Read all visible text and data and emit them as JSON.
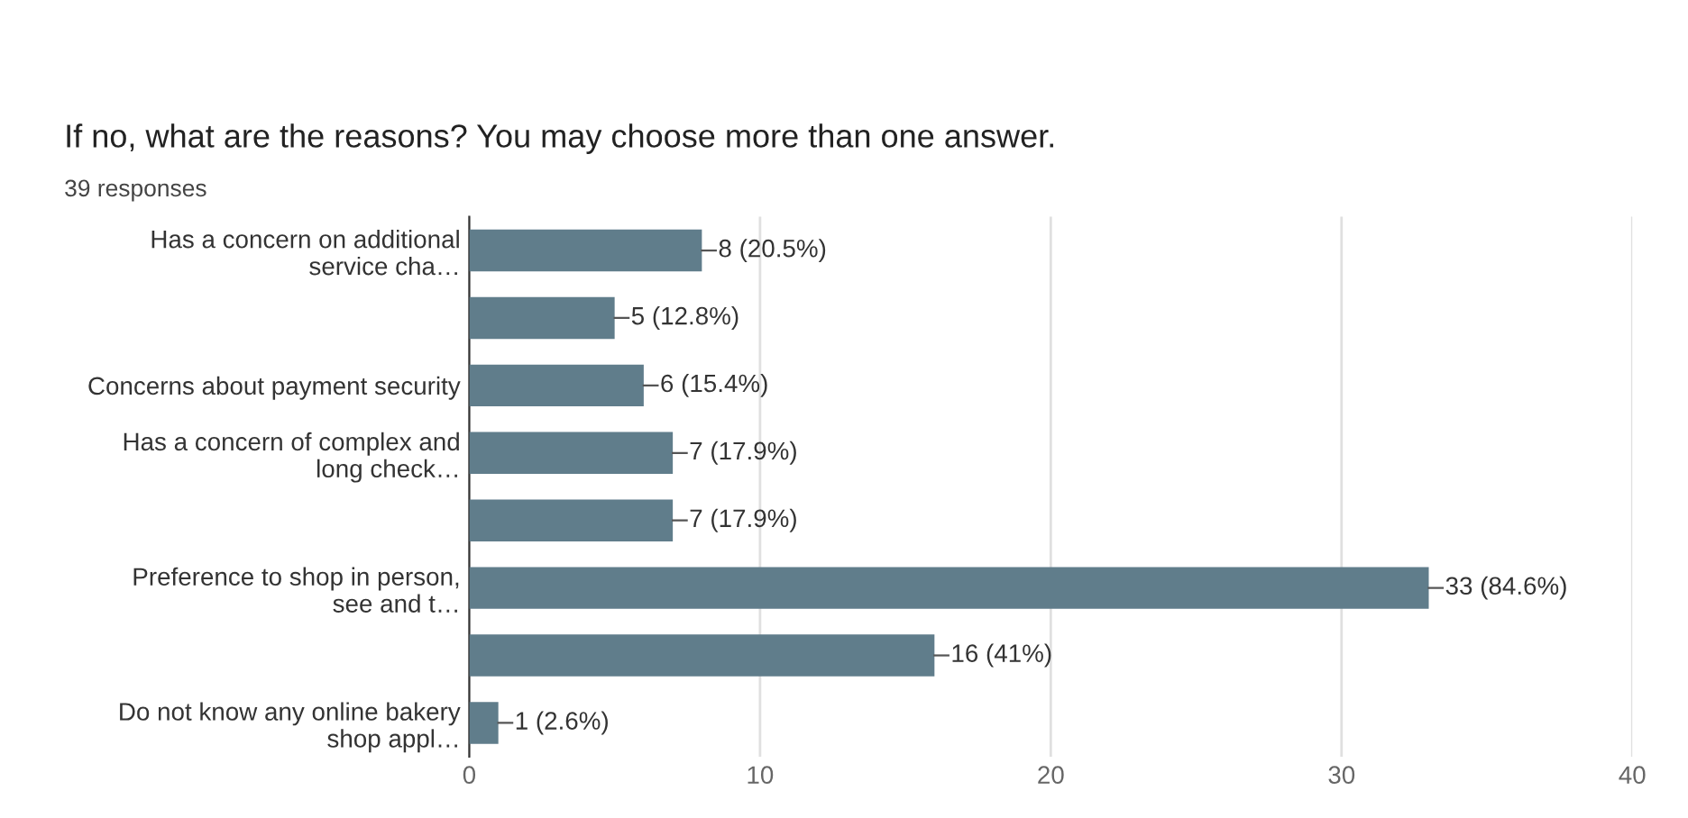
{
  "chart_data": {
    "type": "bar",
    "orientation": "horizontal",
    "title": "If no, what are the reasons? You may choose more than one answer.",
    "subtitle": "39 responses",
    "categories": [
      "Has a concern on additional\nservice cha…",
      null,
      "Concerns about payment security",
      "Has a concern of complex and\nlong check…",
      null,
      "Preference to shop in person,\nsee and t…",
      null,
      "Do not know any online bakery\nshop appl…"
    ],
    "values": [
      8,
      5,
      6,
      7,
      7,
      33,
      16,
      1
    ],
    "value_labels": [
      "8 (20.5%)",
      "5 (12.8%)",
      "6 (15.4%)",
      "7 (17.9%)",
      "7 (17.9%)",
      "33 (84.6%)",
      "16 (41%)",
      "1 (2.6%)"
    ],
    "color": "#607d8b",
    "xlim": [
      0,
      40
    ],
    "xticks": [
      0,
      10,
      20,
      30,
      40
    ],
    "grid": "x"
  }
}
